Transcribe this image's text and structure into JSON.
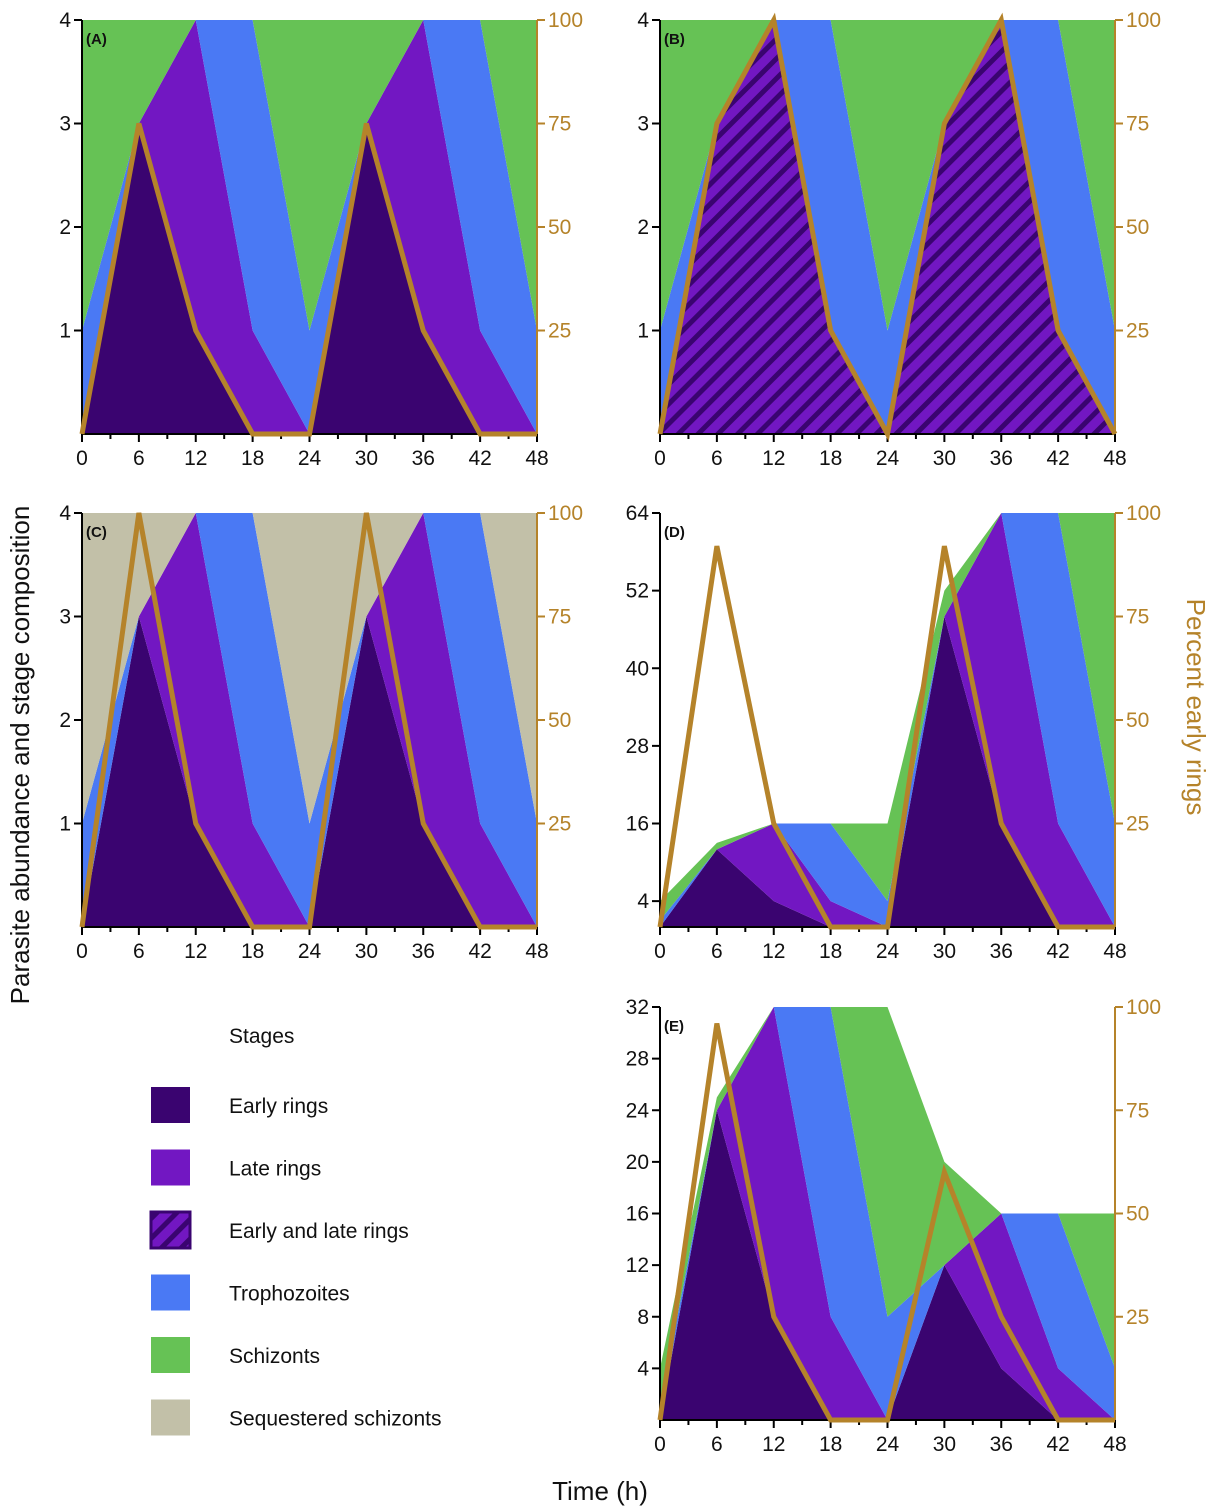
{
  "figure": {
    "ylabel_left": "Parasite abundance and stage composition",
    "ylabel_right": "Percent early rings",
    "xlabel": "Time (h)"
  },
  "colors": {
    "early_rings": "#3a0470",
    "late_rings": "#7217c2",
    "trophozoites": "#4a79f4",
    "schizonts": "#66c255",
    "sequestered_schizonts": "#c2c0a8",
    "percent_line": "#b5832a"
  },
  "legend": {
    "title": "Stages",
    "items": [
      {
        "key": "early",
        "label": "Early rings",
        "color": "#3a0470"
      },
      {
        "key": "late",
        "label": "Late rings",
        "color": "#7217c2"
      },
      {
        "key": "early_late",
        "label": "Early and late rings",
        "color": "#7217c2",
        "hatched": true
      },
      {
        "key": "troph",
        "label": "Trophozoites",
        "color": "#4a79f4"
      },
      {
        "key": "schiz",
        "label": "Schizonts",
        "color": "#66c255"
      },
      {
        "key": "seq",
        "label": "Sequestered schizonts",
        "color": "#c2c0a8"
      }
    ]
  },
  "chart_data": [
    {
      "type": "area",
      "panel": "(A)",
      "x": [
        0,
        6,
        12,
        18,
        24,
        30,
        36,
        42,
        48
      ],
      "xlim": [
        0,
        48
      ],
      "ylim": [
        0,
        4
      ],
      "yticks": [
        1,
        2,
        3,
        4
      ],
      "ylim_right": [
        0,
        100
      ],
      "yticks_right": [
        25,
        50,
        75,
        100
      ],
      "series": [
        {
          "name": "Early rings",
          "key": "early",
          "values": [
            0,
            3,
            1,
            0,
            0,
            3,
            1,
            0,
            0
          ]
        },
        {
          "name": "Late rings",
          "key": "late",
          "values": [
            0,
            0,
            3,
            1,
            0,
            0,
            3,
            1,
            0
          ]
        },
        {
          "name": "Trophozoites",
          "key": "troph",
          "values": [
            1,
            0,
            0,
            3,
            1,
            0,
            0,
            3,
            1
          ]
        },
        {
          "name": "Schizonts",
          "key": "schiz",
          "values": [
            3,
            1,
            0,
            0,
            3,
            1,
            0,
            0,
            3
          ]
        }
      ],
      "percent_early_rings": [
        0,
        75,
        25,
        0,
        0,
        75,
        25,
        0,
        0
      ]
    },
    {
      "type": "area",
      "panel": "(B)",
      "x": [
        0,
        6,
        12,
        18,
        24,
        30,
        36,
        42,
        48
      ],
      "xlim": [
        0,
        48
      ],
      "ylim": [
        0,
        4
      ],
      "yticks": [
        1,
        2,
        3,
        4
      ],
      "ylim_right": [
        0,
        100
      ],
      "yticks_right": [
        25,
        50,
        75,
        100
      ],
      "series": [
        {
          "name": "Early and late rings",
          "key": "early_late",
          "values": [
            0,
            3,
            4,
            1,
            0,
            3,
            4,
            1,
            0
          ]
        },
        {
          "name": "Trophozoites",
          "key": "troph",
          "values": [
            1,
            0,
            0,
            3,
            1,
            0,
            0,
            3,
            1
          ]
        },
        {
          "name": "Schizonts",
          "key": "schiz",
          "values": [
            3,
            1,
            0,
            0,
            3,
            1,
            0,
            0,
            3
          ]
        }
      ],
      "percent_early_rings": [
        0,
        75,
        100,
        25,
        0,
        75,
        100,
        25,
        0
      ]
    },
    {
      "type": "area",
      "panel": "(C)",
      "x": [
        0,
        6,
        12,
        18,
        24,
        30,
        36,
        42,
        48
      ],
      "xlim": [
        0,
        48
      ],
      "ylim": [
        0,
        4
      ],
      "yticks": [
        1,
        2,
        3,
        4
      ],
      "ylim_right": [
        0,
        100
      ],
      "yticks_right": [
        25,
        50,
        75,
        100
      ],
      "series": [
        {
          "name": "Early rings",
          "key": "early",
          "values": [
            0,
            3,
            1,
            0,
            0,
            3,
            1,
            0,
            0
          ]
        },
        {
          "name": "Late rings",
          "key": "late",
          "values": [
            0,
            0,
            3,
            1,
            0,
            0,
            3,
            1,
            0
          ]
        },
        {
          "name": "Trophozoites",
          "key": "troph",
          "values": [
            1,
            0,
            0,
            3,
            1,
            0,
            0,
            3,
            1
          ]
        },
        {
          "name": "Sequestered schizonts",
          "key": "seq",
          "values": [
            3,
            1,
            0,
            0,
            3,
            1,
            0,
            0,
            3
          ]
        }
      ],
      "percent_early_rings": [
        0,
        100,
        25,
        0,
        0,
        100,
        25,
        0,
        0
      ]
    },
    {
      "type": "area",
      "panel": "(D)",
      "x": [
        0,
        6,
        12,
        18,
        24,
        30,
        36,
        42,
        48
      ],
      "xlim": [
        0,
        48
      ],
      "ylim": [
        0,
        64
      ],
      "yticks": [
        4,
        16,
        28,
        40,
        52,
        64
      ],
      "ylim_right": [
        0,
        100
      ],
      "yticks_right": [
        25,
        50,
        75,
        100
      ],
      "series": [
        {
          "name": "Early rings",
          "key": "early",
          "values": [
            0,
            12,
            4,
            0,
            0,
            48,
            16,
            0,
            0
          ]
        },
        {
          "name": "Late rings",
          "key": "late",
          "values": [
            0,
            0,
            12,
            4,
            0,
            0,
            48,
            16,
            0
          ]
        },
        {
          "name": "Trophozoites",
          "key": "troph",
          "values": [
            1,
            0,
            0,
            12,
            4,
            0,
            0,
            48,
            16
          ]
        },
        {
          "name": "Schizonts",
          "key": "schiz",
          "values": [
            3,
            1,
            0,
            0,
            12,
            4,
            0,
            0,
            48
          ]
        }
      ],
      "percent_early_rings": [
        0,
        92,
        25,
        0,
        0,
        92,
        25,
        0,
        0
      ]
    },
    {
      "type": "area",
      "panel": "(E)",
      "x": [
        0,
        6,
        12,
        18,
        24,
        30,
        36,
        42,
        48
      ],
      "xlim": [
        0,
        48
      ],
      "ylim": [
        0,
        32
      ],
      "yticks": [
        4,
        8,
        12,
        16,
        20,
        24,
        28,
        32
      ],
      "ylim_right": [
        0,
        100
      ],
      "yticks_right": [
        25,
        50,
        75,
        100
      ],
      "series": [
        {
          "name": "Early rings",
          "key": "early",
          "values": [
            0,
            24,
            8,
            0,
            0,
            12,
            4,
            0,
            0
          ]
        },
        {
          "name": "Late rings",
          "key": "late",
          "values": [
            0,
            0,
            24,
            8,
            0,
            0,
            12,
            4,
            0
          ]
        },
        {
          "name": "Trophozoites",
          "key": "troph",
          "values": [
            1,
            0,
            0,
            24,
            8,
            0,
            0,
            12,
            4
          ]
        },
        {
          "name": "Schizonts",
          "key": "schiz",
          "values": [
            3,
            1,
            0,
            0,
            24,
            8,
            0,
            0,
            12
          ]
        }
      ],
      "percent_early_rings": [
        0,
        96,
        25,
        0,
        0,
        60,
        25,
        0,
        0
      ]
    }
  ]
}
